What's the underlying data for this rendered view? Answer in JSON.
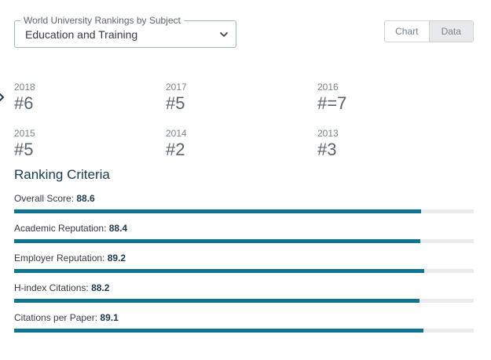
{
  "subject_select": {
    "legend": "World University Rankings by Subject",
    "value": "Education and Training"
  },
  "view_toggle": {
    "chart_label": "Chart",
    "data_label": "Data",
    "active": "Data"
  },
  "rankings": [
    {
      "year": "2018",
      "rank": "#6"
    },
    {
      "year": "2017",
      "rank": "#5"
    },
    {
      "year": "2016",
      "rank": "#=7"
    },
    {
      "year": "2015",
      "rank": "#5"
    },
    {
      "year": "2014",
      "rank": "#2"
    },
    {
      "year": "2013",
      "rank": "#3"
    }
  ],
  "criteria": {
    "title": "Ranking Criteria",
    "items": [
      {
        "label": "Overall Score:",
        "score": "88.6",
        "percent": 88.6
      },
      {
        "label": "Academic Reputation:",
        "score": "88.4",
        "percent": 88.4
      },
      {
        "label": "Employer Reputation:",
        "score": "89.2",
        "percent": 89.2
      },
      {
        "label": "H-index Citations:",
        "score": "88.2",
        "percent": 88.2
      },
      {
        "label": "Citations per Paper:",
        "score": "89.1",
        "percent": 89.1
      }
    ]
  },
  "colors": {
    "accent": "#0f7391",
    "track": "#e9ebed",
    "heading": "#19394d"
  }
}
